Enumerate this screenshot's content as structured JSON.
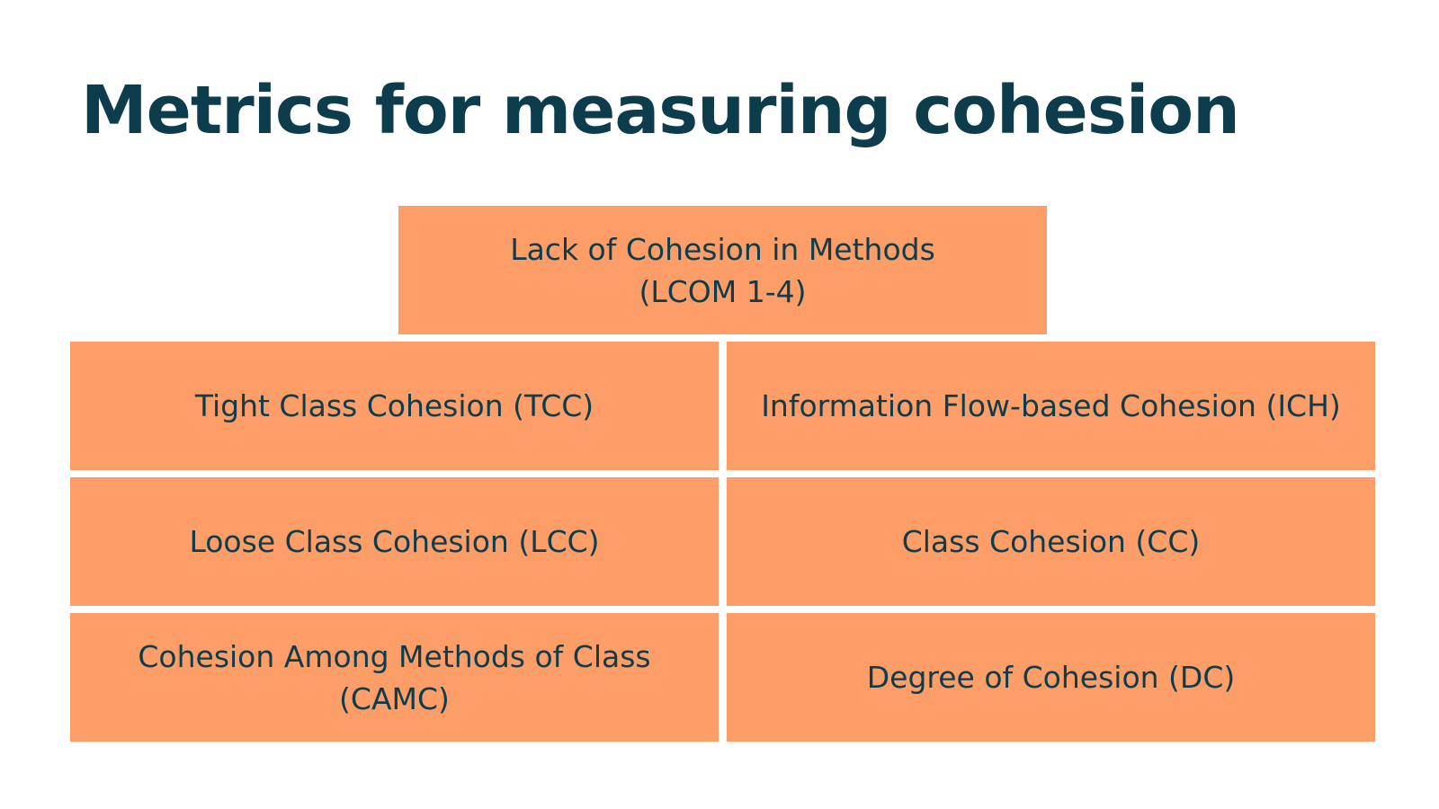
{
  "slide": {
    "title": "Metrics for measuring cohesion"
  },
  "metrics": {
    "top": "Lack of Cohesion in Methods (LCOM 1-4)",
    "tcc": "Tight Class Cohesion (TCC)",
    "ich": "Information Flow-based Cohesion (ICH)",
    "lcc": "Loose Class Cohesion (LCC)",
    "cc": "Class Cohesion (CC)",
    "camc": "Cohesion Among Methods of Class (CAMC)",
    "dc": "Degree of Cohesion (DC)"
  },
  "colors": {
    "box_fill": "#fd9d67",
    "text": "#0d3c4d",
    "background": "#ffffff"
  }
}
